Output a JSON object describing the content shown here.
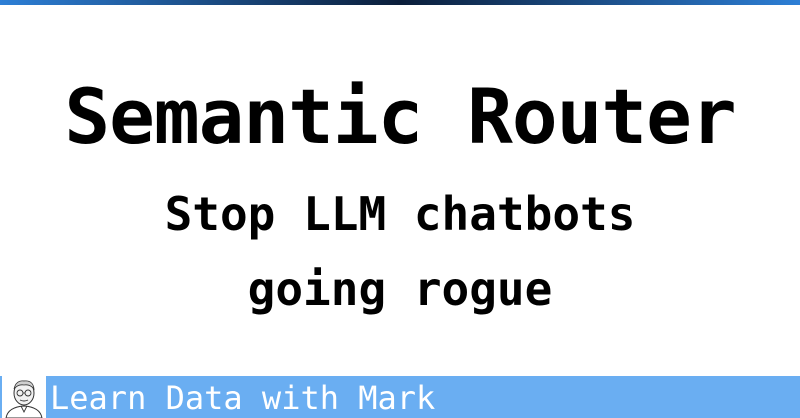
{
  "colors": {
    "top_bar_gradient": [
      "#2d7fd6",
      "#0b1e3a",
      "#2d7fd6"
    ],
    "footer_background": "#6aaef2",
    "footer_text": "#ffffff",
    "title_text": "#000000"
  },
  "title": "Semantic Router",
  "subtitle": {
    "line1": "Stop LLM chatbots",
    "line2": "going rogue"
  },
  "footer": {
    "avatar_icon": "person-sketch-icon",
    "brand_text": "Learn Data with Mark"
  }
}
